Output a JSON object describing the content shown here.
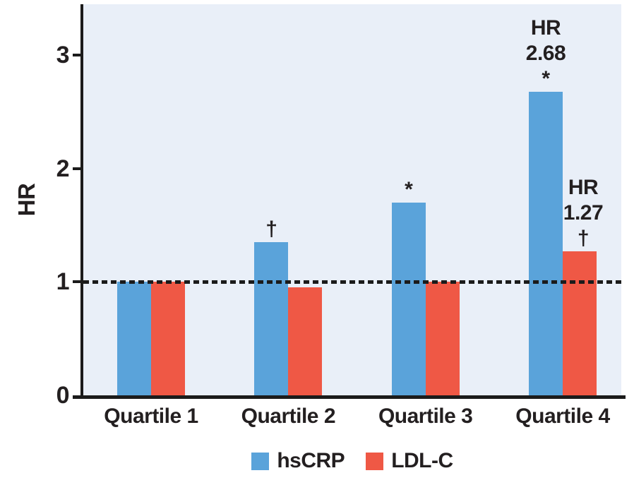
{
  "figure": {
    "background": "#FFFFFF",
    "ink_color": "#231F20"
  },
  "chart_data": {
    "type": "bar",
    "title": "",
    "categories": [
      "Quartile 1",
      "Quartile 2",
      "Quartile 3",
      "Quartile 4"
    ],
    "series": [
      {
        "name": "hsCRP",
        "color": "#5AA3DA",
        "values": [
          1.0,
          1.35,
          1.7,
          2.68
        ]
      },
      {
        "name": "LDL-C",
        "color": "#EF5845",
        "values": [
          1.0,
          0.95,
          1.0,
          1.27
        ]
      }
    ],
    "xlabel": "",
    "ylabel": "HR",
    "ylim": [
      0,
      3.45
    ],
    "yticks": [
      0,
      1,
      2,
      3
    ],
    "grid": false,
    "plot_background": "#E9EFF8",
    "axis_color": "#1B1B1B",
    "reference_line": {
      "y": 1.0,
      "style": "dashed",
      "color": "#1B1B1B"
    },
    "legend_position": "bottom",
    "legend": [
      {
        "label": "hsCRP",
        "color": "#5AA3DA"
      },
      {
        "label": "LDL-C",
        "color": "#EF5845"
      }
    ],
    "annotations": [
      {
        "series_index": 0,
        "category_index": 1,
        "lines": [
          "†"
        ]
      },
      {
        "series_index": 0,
        "category_index": 2,
        "lines": [
          "*"
        ]
      },
      {
        "series_index": 0,
        "category_index": 3,
        "lines": [
          "HR",
          "2.68",
          "*"
        ]
      },
      {
        "series_index": 1,
        "category_index": 3,
        "lines": [
          "HR",
          "1.27",
          "†"
        ]
      }
    ]
  }
}
